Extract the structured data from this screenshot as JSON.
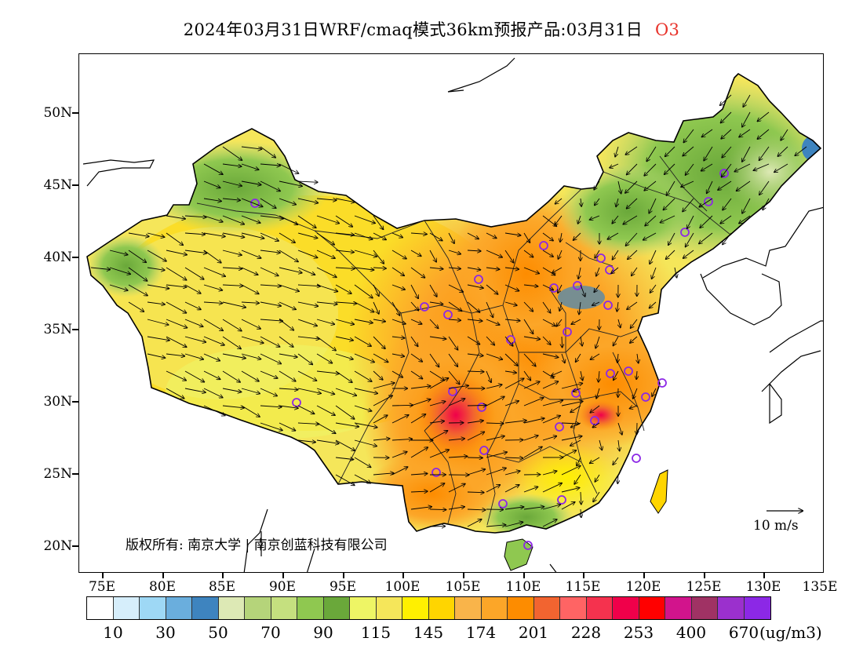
{
  "title": {
    "main": "2024年03月31日WRF/cmaq模式36km预报产品:03月31日",
    "species": "O3"
  },
  "map": {
    "lat_labels": [
      "50N",
      "45N",
      "40N",
      "35N",
      "30N",
      "25N",
      "20N"
    ],
    "lon_labels": [
      "75E",
      "80E",
      "85E",
      "90E",
      "95E",
      "100E",
      "105E",
      "110E",
      "115E",
      "120E",
      "125E",
      "130E",
      "135E"
    ],
    "copyright": "版权所有: 南京大学 | 南京创蓝科技有限公司",
    "scale_label": "10 m/s"
  },
  "legend": {
    "colors": [
      "#ffffff",
      "#d6eefb",
      "#9ed8f5",
      "#6aaedd",
      "#3e84bf",
      "#dde9b5",
      "#b5d47a",
      "#c5e07f",
      "#8fc850",
      "#6aa83a",
      "#eef565",
      "#f5e65a",
      "#fff000",
      "#ffd500",
      "#f9b44a",
      "#fca628",
      "#fd8c00",
      "#f26430",
      "#ff6464",
      "#f5324e",
      "#f0004a",
      "#ff0000",
      "#d2148c",
      "#a03264",
      "#9b30cd",
      "#8c28e6"
    ],
    "labels": [
      "10",
      "30",
      "50",
      "70",
      "90",
      "115",
      "145",
      "174",
      "201",
      "228",
      "253",
      "400",
      "670"
    ],
    "unit": "(ug/m3)"
  }
}
